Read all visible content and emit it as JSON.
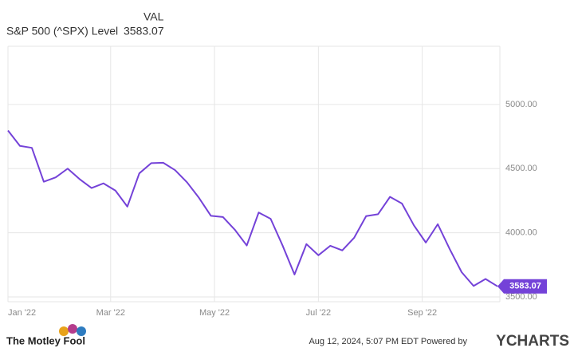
{
  "chart_data": {
    "type": "line",
    "header": {
      "column": "VAL",
      "name": "S&P 500 (^SPX) Level",
      "value": "3583.07"
    },
    "series": [
      {
        "name": "S&P 500 (^SPX) Level",
        "color": "#7442d8",
        "values": [
          4797,
          4677,
          4662,
          4398,
          4432,
          4500,
          4418,
          4349,
          4385,
          4329,
          4204,
          4463,
          4543,
          4546,
          4488,
          4393,
          4272,
          4132,
          4123,
          4024,
          3901,
          4158,
          4109,
          3901,
          3675,
          3912,
          3825,
          3899,
          3863,
          3962,
          4130,
          4145,
          4280,
          4228,
          4058,
          3924,
          4067,
          3873,
          3693,
          3586,
          3640,
          3583.07
        ]
      }
    ],
    "last_label": "3583.07",
    "xlim": [
      0,
      41
    ],
    "xticks": [
      {
        "value": 0,
        "label": "Jan '22"
      },
      {
        "value": 8.6,
        "label": "Mar '22"
      },
      {
        "value": 17.3,
        "label": "May '22"
      },
      {
        "value": 26,
        "label": "Jul '22"
      },
      {
        "value": 34.7,
        "label": "Sep '22"
      }
    ],
    "ylim": [
      3463,
      5453
    ],
    "yticks": [
      {
        "value": 3500,
        "label": "3500.00"
      },
      {
        "value": 4000,
        "label": "4000.00"
      },
      {
        "value": 4500,
        "label": "4500.00"
      },
      {
        "value": 5000,
        "label": "5000.00"
      }
    ],
    "grid": true,
    "footer": {
      "brand": "The Motley Fool",
      "timestamp": "Aug 12, 2024, 5:07 PM EDT  Powered by",
      "source": "YCHARTS"
    }
  }
}
